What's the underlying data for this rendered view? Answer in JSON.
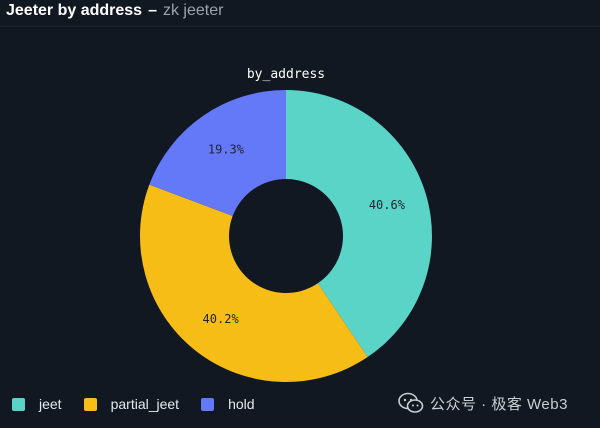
{
  "panel": {
    "title": "Jeeter by address",
    "separator": "–",
    "subtitle": "zk jeeter"
  },
  "watermark": {
    "text": "公众号 · 极客 Web3"
  },
  "chart_data": {
    "type": "pie",
    "donut": true,
    "title": "by_address",
    "legend_position": "bottom-left",
    "categories": [
      "jeet",
      "partial_jeet",
      "hold"
    ],
    "values": [
      40.6,
      40.2,
      19.3
    ],
    "labels": [
      "40.6%",
      "40.2%",
      "19.3%"
    ],
    "colors": [
      "#5ad4c6",
      "#f6bd16",
      "#6479f8"
    ],
    "start_angle_deg": 0,
    "direction": "clockwise"
  }
}
